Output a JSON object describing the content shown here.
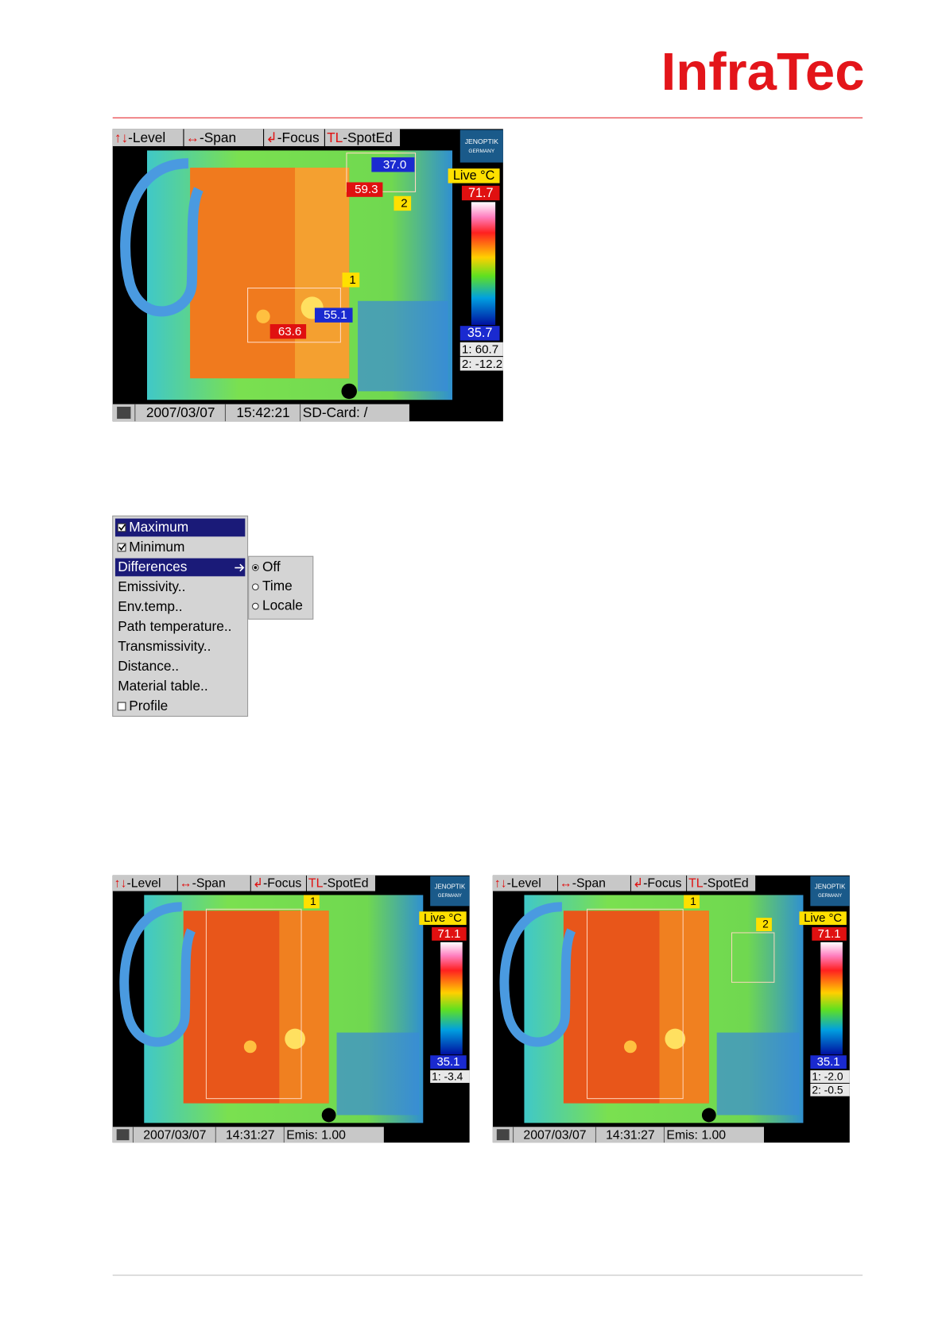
{
  "logo": "InfraTec",
  "screens": [
    {
      "toolbar": [
        {
          "key": "↑↓",
          "label": "-Level"
        },
        {
          "key": "↔",
          "label": "-Span"
        },
        {
          "key": "↲",
          "label": "-Focus"
        },
        {
          "key": "TL",
          "label": "-SpotEd"
        }
      ],
      "brand": [
        "JENOPTIK",
        "GERMANY"
      ],
      "mode": "Live °C",
      "max": "71.7",
      "min": "35.7",
      "readouts": [
        "1: 60.7",
        "2: -12.2"
      ],
      "markers": [
        "37.0",
        "59.3",
        "2",
        "1",
        "55.1",
        "63.6"
      ],
      "status": [
        "2007/03/07",
        "15:42:21",
        "SD-Card: /"
      ]
    },
    {
      "toolbar": [
        {
          "key": "↑↓",
          "label": "-Level"
        },
        {
          "key": "↔",
          "label": "-Span"
        },
        {
          "key": "↲",
          "label": "-Focus"
        },
        {
          "key": "TL",
          "label": "-SpotEd"
        }
      ],
      "brand": [
        "JENOPTIK",
        "GERMANY"
      ],
      "mode": "Live °C",
      "max": "71.1",
      "min": "35.1",
      "readouts": [
        "1: -3.4"
      ],
      "markers": [
        "1"
      ],
      "status": [
        "2007/03/07",
        "14:31:27",
        "Emis: 1.00"
      ]
    },
    {
      "toolbar": [
        {
          "key": "↑↓",
          "label": "-Level"
        },
        {
          "key": "↔",
          "label": "-Span"
        },
        {
          "key": "↲",
          "label": "-Focus"
        },
        {
          "key": "TL",
          "label": "-SpotEd"
        }
      ],
      "brand": [
        "JENOPTIK",
        "GERMANY"
      ],
      "mode": "Live °C",
      "max": "71.1",
      "min": "35.1",
      "readouts": [
        "1: -2.0",
        "2: -0.5"
      ],
      "markers": [
        "1",
        "2"
      ],
      "status": [
        "2007/03/07",
        "14:31:27",
        "Emis: 1.00"
      ]
    }
  ],
  "menu": {
    "items": [
      {
        "label": "Maximum",
        "checked": true,
        "highlight": true
      },
      {
        "label": "Minimum",
        "checked": true
      },
      {
        "label": "Differences",
        "highlight": true,
        "submenu": true
      },
      {
        "label": "Emissivity.."
      },
      {
        "label": "Env.temp.."
      },
      {
        "label": "Path temperature.."
      },
      {
        "label": "Transmissivity.."
      },
      {
        "label": "Distance.."
      },
      {
        "label": "Material table.."
      },
      {
        "label": "Profile",
        "checked": false
      }
    ],
    "submenu": [
      {
        "label": "Off",
        "selected": true
      },
      {
        "label": "Time"
      },
      {
        "label": "Locale"
      }
    ]
  }
}
